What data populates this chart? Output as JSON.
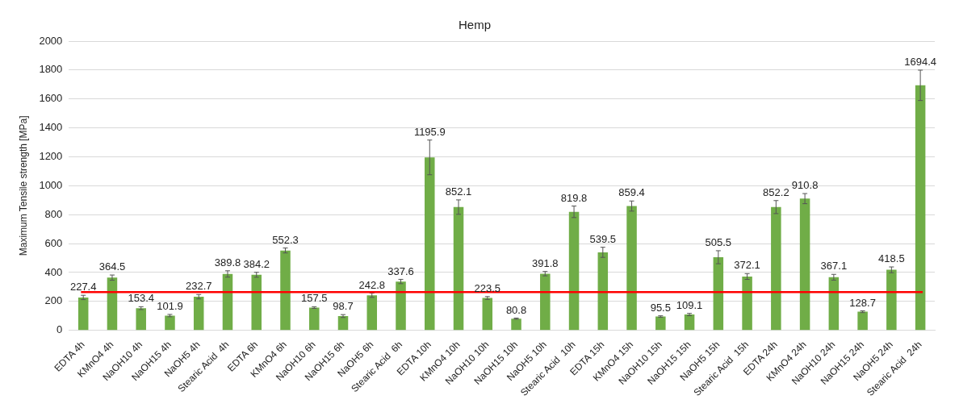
{
  "chart_data": {
    "type": "bar",
    "title": "Hemp",
    "ylabel": "Maximum Tensile strength [MPa]",
    "categories": [
      "EDTA 4h",
      "KMnO4 4h",
      "NaOH10 4h",
      "NaOH15 4h",
      "NaOH5 4h",
      "Stearic Acid  4h",
      "EDTA 6h",
      "KMnO4 6h",
      "NaOH10 6h",
      "NaOH15 6h",
      "NaOH5 6h",
      "Stearic Acid  6h",
      "EDTA 10h",
      "KMnO4 10h",
      "NaOH10 10h",
      "NaOH15 10h",
      "NaOH5 10h",
      "Stearic Acid  10h",
      "EDTA 15h",
      "KMnO4 15h",
      "NaOH10 15h",
      "NaOH15 15h",
      "NaOH5 15h",
      "Stearic Acid  15h",
      "EDTA 24h",
      "KMnO4 24h",
      "NaOH10 24h",
      "NaOH15 24h",
      "NaOH5 24h",
      "Stearic Acid  24h"
    ],
    "values": [
      227.4,
      364.5,
      153.4,
      101.9,
      232.7,
      389.8,
      384.2,
      552.3,
      157.5,
      98.7,
      242.8,
      337.6,
      1195.9,
      852.1,
      223.5,
      80.8,
      391.8,
      819.8,
      539.5,
      859.4,
      95.5,
      109.1,
      505.5,
      372.1,
      852.2,
      910.8,
      367.1,
      128.7,
      418.5,
      1694.4
    ],
    "errors": [
      15,
      18,
      10,
      8,
      15,
      22,
      17,
      17,
      6,
      10,
      15,
      15,
      120,
      50,
      10,
      4,
      15,
      40,
      35,
      35,
      5,
      8,
      45,
      20,
      45,
      35,
      20,
      6,
      20,
      105
    ],
    "color": "#70ad47",
    "data_labels": true,
    "grid": "y",
    "ylim": [
      0,
      2000
    ],
    "yticks": [
      0,
      200,
      400,
      600,
      800,
      1000,
      1200,
      1400,
      1600,
      1800,
      2000
    ],
    "ref_lines": [
      {
        "axis": "y",
        "value": 265,
        "color": "#ff0000"
      }
    ]
  }
}
